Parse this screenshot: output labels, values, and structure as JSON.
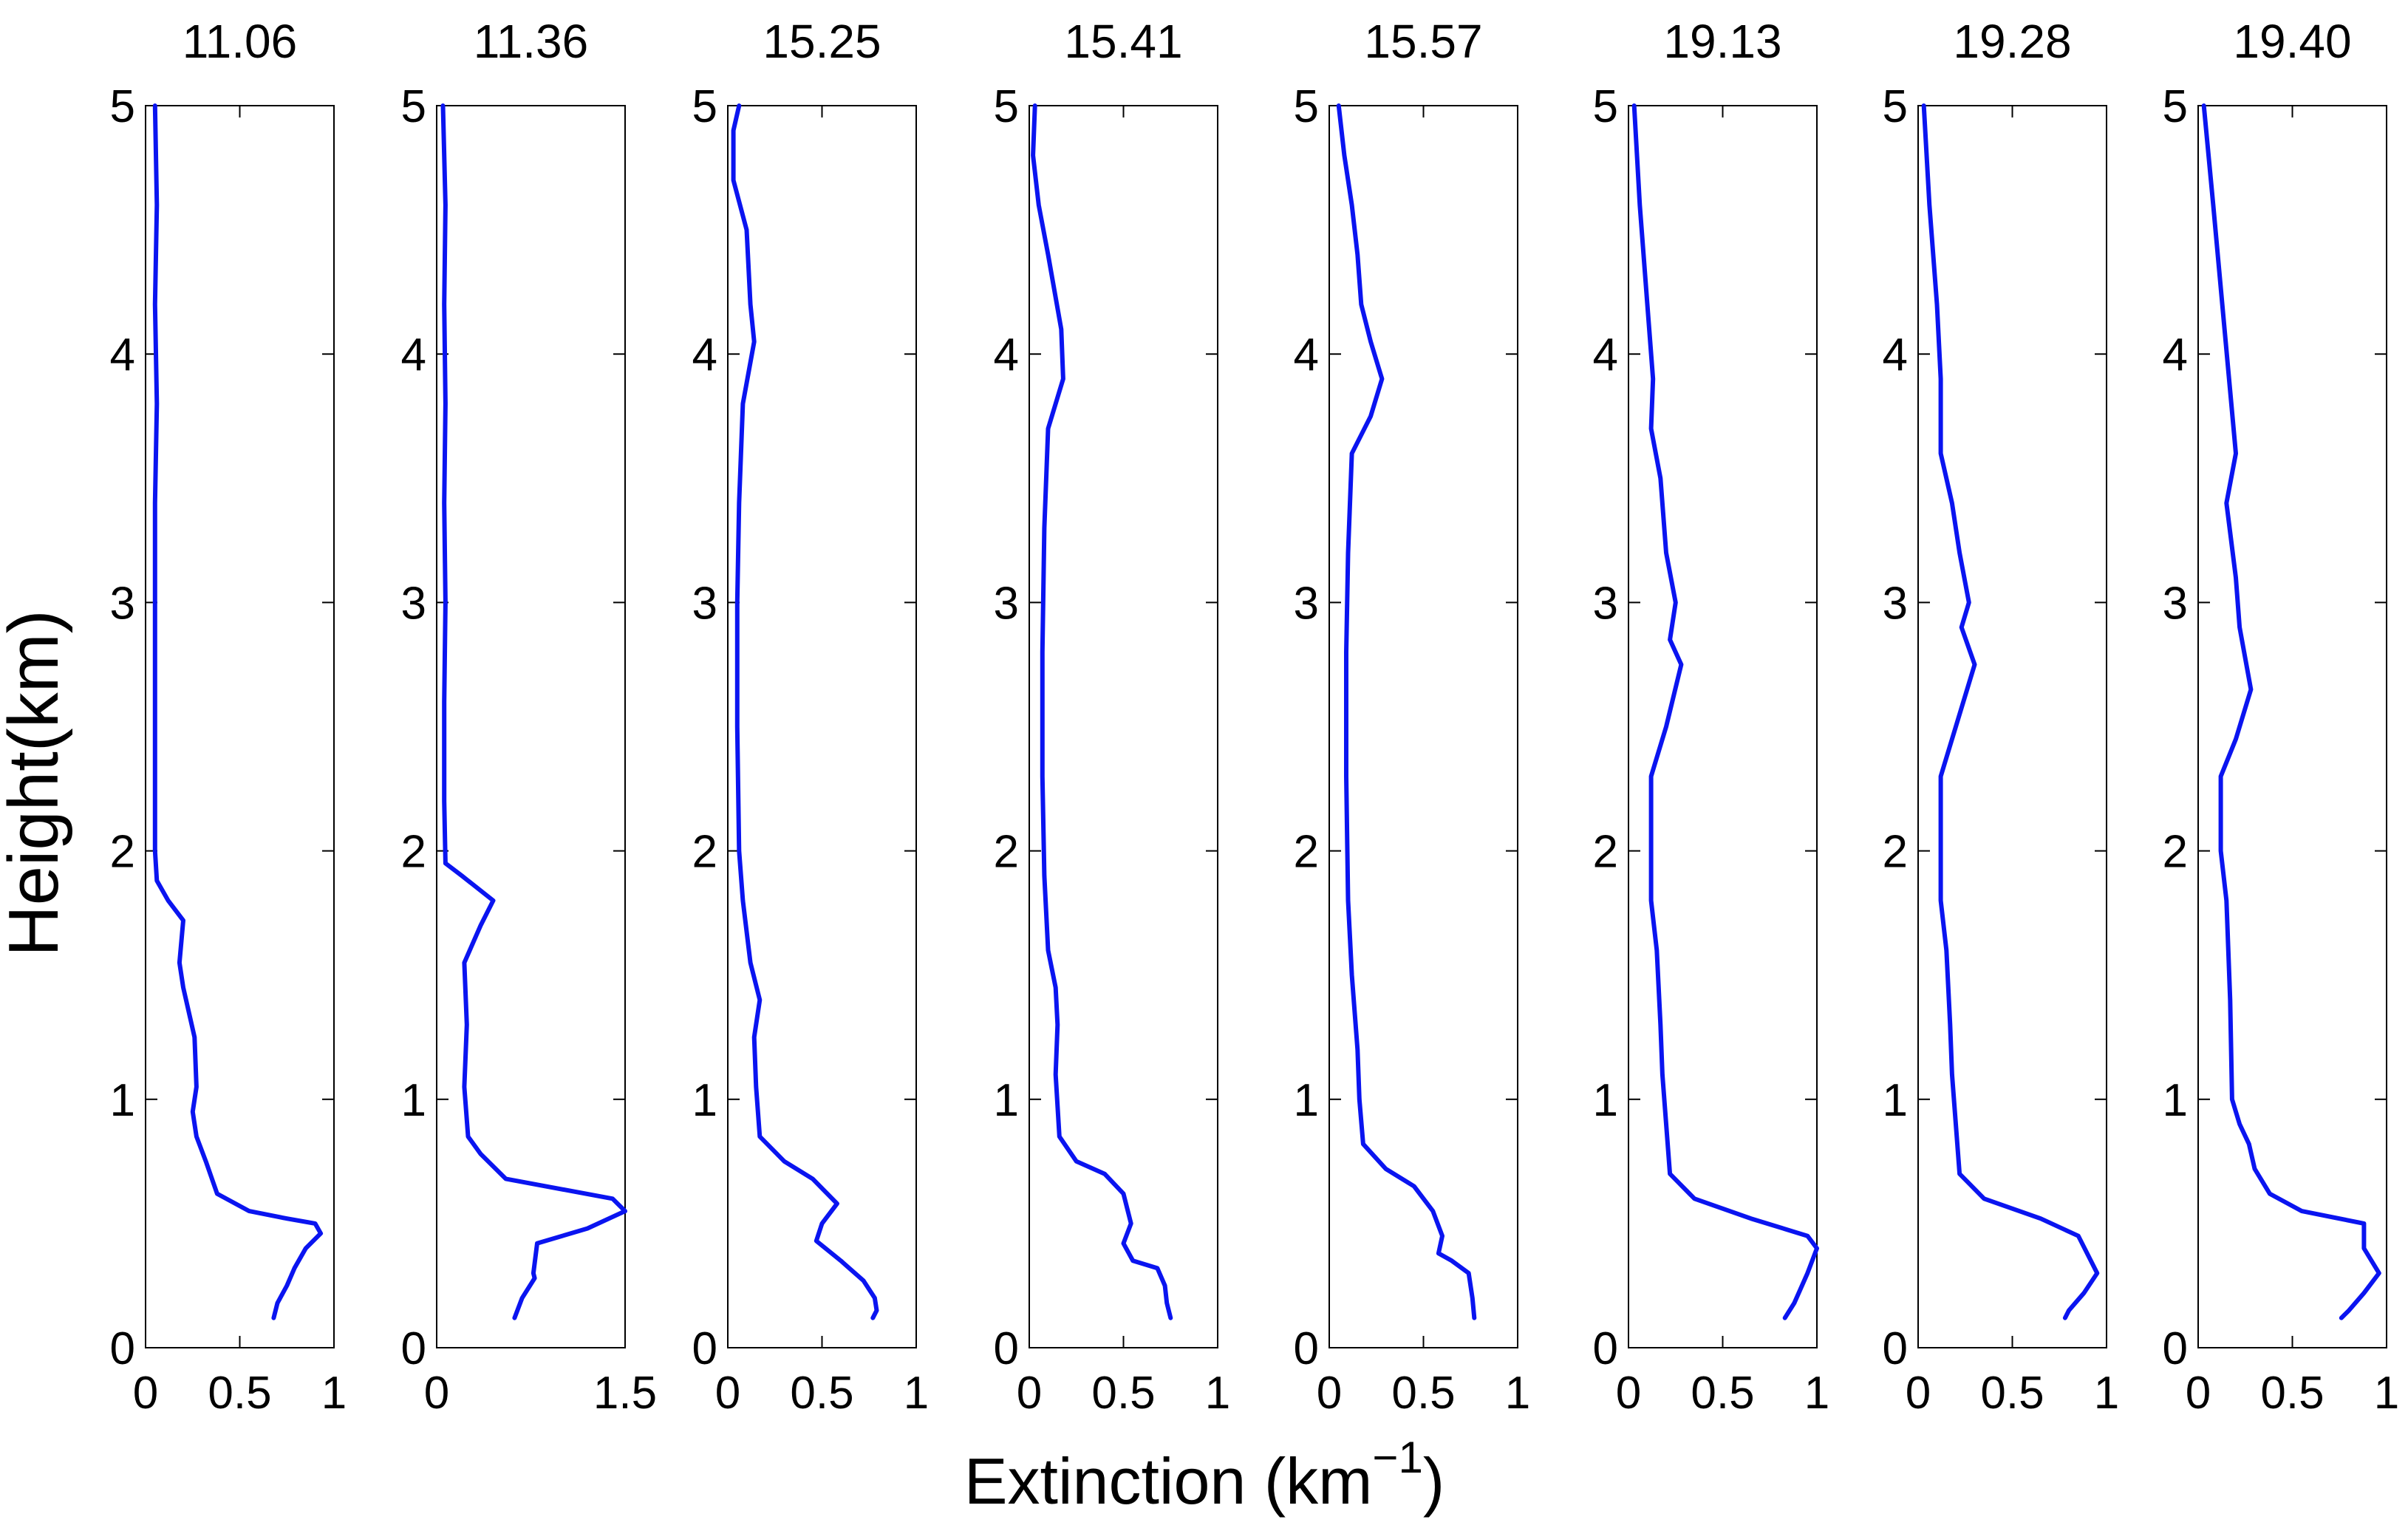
{
  "figure": {
    "ylabel": "Height(km)",
    "xlabel_main": "Extinction (km",
    "xlabel_sup": "−1",
    "xlabel_close": ")",
    "line_color": "#0a14f0"
  },
  "chart_data": [
    {
      "type": "line",
      "title": "11.06",
      "xlim": [
        0,
        1
      ],
      "xticks": [
        0,
        0.5,
        1
      ],
      "xtick_labels": [
        "0",
        "0.5",
        "1"
      ],
      "ylim": [
        0,
        5
      ],
      "yticks": [
        0,
        1,
        2,
        3,
        4,
        5
      ],
      "ytick_labels": [
        "0",
        "1",
        "2",
        "3",
        "4",
        "5"
      ],
      "grid": false,
      "series": [
        {
          "color": "#0a14f0",
          "x": [
            0.05,
            0.06,
            0.05,
            0.06,
            0.05,
            0.05,
            0.05,
            0.05,
            0.05,
            0.06,
            0.12,
            0.2,
            0.18,
            0.2,
            0.26,
            0.27,
            0.25,
            0.27,
            0.32,
            0.38,
            0.55,
            0.75,
            0.9,
            0.93,
            0.85,
            0.79,
            0.75,
            0.7,
            0.68
          ],
          "y": [
            5.0,
            4.6,
            4.2,
            3.8,
            3.4,
            3.0,
            2.6,
            2.2,
            2.0,
            1.88,
            1.8,
            1.72,
            1.55,
            1.45,
            1.25,
            1.05,
            0.95,
            0.85,
            0.75,
            0.62,
            0.55,
            0.52,
            0.5,
            0.46,
            0.4,
            0.32,
            0.25,
            0.18,
            0.12
          ]
        }
      ]
    },
    {
      "type": "line",
      "title": "11.36",
      "xlim": [
        0,
        1.5
      ],
      "xticks": [
        0,
        1.5
      ],
      "xtick_labels": [
        "0",
        "1.5"
      ],
      "ylim": [
        0,
        5
      ],
      "yticks": [
        0,
        1,
        2,
        3,
        4,
        5
      ],
      "ytick_labels": [
        "0",
        "1",
        "2",
        "3",
        "4",
        "5"
      ],
      "grid": false,
      "series": [
        {
          "color": "#0a14f0",
          "x": [
            0.05,
            0.07,
            0.06,
            0.07,
            0.06,
            0.07,
            0.06,
            0.06,
            0.07,
            0.2,
            0.45,
            0.35,
            0.22,
            0.24,
            0.22,
            0.25,
            0.35,
            0.55,
            1.4,
            1.5,
            1.2,
            0.8,
            0.77,
            0.78,
            0.68,
            0.62
          ],
          "y": [
            5.0,
            4.6,
            4.2,
            3.8,
            3.4,
            3.0,
            2.6,
            2.2,
            1.95,
            1.9,
            1.8,
            1.7,
            1.55,
            1.3,
            1.05,
            0.85,
            0.78,
            0.68,
            0.6,
            0.55,
            0.48,
            0.42,
            0.3,
            0.28,
            0.2,
            0.12
          ]
        }
      ]
    },
    {
      "type": "line",
      "title": "15.25",
      "xlim": [
        0,
        1
      ],
      "xticks": [
        0,
        0.5,
        1
      ],
      "xtick_labels": [
        "0",
        "0.5",
        "1"
      ],
      "ylim": [
        0,
        5
      ],
      "yticks": [
        0,
        1,
        2,
        3,
        4,
        5
      ],
      "ytick_labels": [
        "0",
        "1",
        "2",
        "3",
        "4",
        "5"
      ],
      "grid": false,
      "series": [
        {
          "color": "#0a14f0",
          "x": [
            0.06,
            0.03,
            0.03,
            0.1,
            0.12,
            0.14,
            0.08,
            0.06,
            0.05,
            0.05,
            0.06,
            0.08,
            0.12,
            0.17,
            0.14,
            0.15,
            0.17,
            0.3,
            0.45,
            0.58,
            0.5,
            0.47,
            0.6,
            0.72,
            0.78,
            0.79,
            0.77
          ],
          "y": [
            5.0,
            4.9,
            4.7,
            4.5,
            4.2,
            4.05,
            3.8,
            3.4,
            3.0,
            2.5,
            2.0,
            1.8,
            1.55,
            1.4,
            1.25,
            1.05,
            0.85,
            0.75,
            0.68,
            0.58,
            0.5,
            0.43,
            0.35,
            0.27,
            0.2,
            0.15,
            0.12
          ]
        }
      ]
    },
    {
      "type": "line",
      "title": "15.41",
      "xlim": [
        0,
        1
      ],
      "xticks": [
        0,
        0.5,
        1
      ],
      "xtick_labels": [
        "0",
        "0.5",
        "1"
      ],
      "ylim": [
        0,
        5
      ],
      "yticks": [
        0,
        1,
        2,
        3,
        4,
        5
      ],
      "ytick_labels": [
        "0",
        "1",
        "2",
        "3",
        "4",
        "5"
      ],
      "grid": false,
      "series": [
        {
          "color": "#0a14f0",
          "x": [
            0.03,
            0.02,
            0.05,
            0.1,
            0.17,
            0.18,
            0.1,
            0.08,
            0.07,
            0.07,
            0.08,
            0.1,
            0.14,
            0.15,
            0.14,
            0.16,
            0.25,
            0.4,
            0.5,
            0.54,
            0.5,
            0.55,
            0.68,
            0.72,
            0.73,
            0.75
          ],
          "y": [
            5.0,
            4.8,
            4.6,
            4.4,
            4.1,
            3.9,
            3.7,
            3.3,
            2.8,
            2.3,
            1.9,
            1.6,
            1.45,
            1.3,
            1.1,
            0.85,
            0.75,
            0.7,
            0.62,
            0.5,
            0.42,
            0.35,
            0.32,
            0.25,
            0.18,
            0.12
          ]
        }
      ]
    },
    {
      "type": "line",
      "title": "15.57",
      "xlim": [
        0,
        1
      ],
      "xticks": [
        0,
        0.5,
        1
      ],
      "xtick_labels": [
        "0",
        "0.5",
        "1"
      ],
      "ylim": [
        0,
        5
      ],
      "yticks": [
        0,
        1,
        2,
        3,
        4,
        5
      ],
      "ytick_labels": [
        "0",
        "1",
        "2",
        "3",
        "4",
        "5"
      ],
      "grid": false,
      "series": [
        {
          "color": "#0a14f0",
          "x": [
            0.05,
            0.08,
            0.12,
            0.15,
            0.17,
            0.22,
            0.28,
            0.22,
            0.12,
            0.1,
            0.09,
            0.09,
            0.1,
            0.12,
            0.15,
            0.16,
            0.18,
            0.3,
            0.45,
            0.55,
            0.6,
            0.58,
            0.65,
            0.74,
            0.76,
            0.77
          ],
          "y": [
            5.0,
            4.8,
            4.6,
            4.4,
            4.2,
            4.05,
            3.9,
            3.75,
            3.6,
            3.2,
            2.8,
            2.3,
            1.8,
            1.5,
            1.2,
            1.0,
            0.82,
            0.72,
            0.65,
            0.55,
            0.45,
            0.38,
            0.35,
            0.3,
            0.2,
            0.12
          ]
        }
      ]
    },
    {
      "type": "line",
      "title": "19.13",
      "xlim": [
        0,
        1
      ],
      "xticks": [
        0,
        0.5,
        1
      ],
      "xtick_labels": [
        "0",
        "0.5",
        "1"
      ],
      "ylim": [
        0,
        5
      ],
      "yticks": [
        0,
        1,
        2,
        3,
        4,
        5
      ],
      "ytick_labels": [
        "0",
        "1",
        "2",
        "3",
        "4",
        "5"
      ],
      "grid": false,
      "series": [
        {
          "color": "#0a14f0",
          "x": [
            0.03,
            0.06,
            0.1,
            0.13,
            0.12,
            0.17,
            0.2,
            0.25,
            0.22,
            0.28,
            0.2,
            0.12,
            0.12,
            0.15,
            0.17,
            0.18,
            0.2,
            0.22,
            0.35,
            0.65,
            0.95,
            1.0,
            0.95,
            0.88,
            0.83
          ],
          "y": [
            5.0,
            4.6,
            4.2,
            3.9,
            3.7,
            3.5,
            3.2,
            3.0,
            2.85,
            2.75,
            2.5,
            2.3,
            1.8,
            1.6,
            1.3,
            1.1,
            0.9,
            0.7,
            0.6,
            0.52,
            0.45,
            0.4,
            0.3,
            0.18,
            0.12
          ]
        }
      ]
    },
    {
      "type": "line",
      "title": "19.28",
      "xlim": [
        0,
        1
      ],
      "xticks": [
        0,
        0.5,
        1
      ],
      "xtick_labels": [
        "0",
        "0.5",
        "1"
      ],
      "ylim": [
        0,
        5
      ],
      "yticks": [
        0,
        1,
        2,
        3,
        4,
        5
      ],
      "ytick_labels": [
        "0",
        "1",
        "2",
        "3",
        "4",
        "5"
      ],
      "grid": false,
      "series": [
        {
          "color": "#0a14f0",
          "x": [
            0.03,
            0.06,
            0.1,
            0.12,
            0.12,
            0.18,
            0.22,
            0.27,
            0.23,
            0.3,
            0.2,
            0.12,
            0.12,
            0.15,
            0.17,
            0.18,
            0.2,
            0.22,
            0.35,
            0.65,
            0.85,
            0.95,
            0.88,
            0.8,
            0.78
          ],
          "y": [
            5.0,
            4.6,
            4.2,
            3.9,
            3.6,
            3.4,
            3.2,
            3.0,
            2.9,
            2.75,
            2.5,
            2.3,
            1.8,
            1.6,
            1.3,
            1.1,
            0.9,
            0.7,
            0.6,
            0.52,
            0.45,
            0.3,
            0.22,
            0.15,
            0.12
          ]
        }
      ]
    },
    {
      "type": "line",
      "title": "19.40",
      "xlim": [
        0,
        1
      ],
      "xticks": [
        0,
        0.5,
        1
      ],
      "xtick_labels": [
        "0",
        "0.5",
        "1"
      ],
      "ylim": [
        0,
        5
      ],
      "yticks": [
        0,
        1,
        2,
        3,
        4,
        5
      ],
      "ytick_labels": [
        "0",
        "1",
        "2",
        "3",
        "4",
        "5"
      ],
      "grid": false,
      "series": [
        {
          "color": "#0a14f0",
          "x": [
            0.03,
            0.08,
            0.14,
            0.2,
            0.15,
            0.2,
            0.22,
            0.28,
            0.2,
            0.12,
            0.12,
            0.15,
            0.17,
            0.18,
            0.22,
            0.27,
            0.3,
            0.38,
            0.55,
            0.88,
            0.88,
            0.96,
            0.88,
            0.8,
            0.76
          ],
          "y": [
            5.0,
            4.6,
            4.1,
            3.6,
            3.4,
            3.1,
            2.9,
            2.65,
            2.45,
            2.3,
            2.0,
            1.8,
            1.4,
            1.0,
            0.9,
            0.82,
            0.72,
            0.62,
            0.55,
            0.5,
            0.4,
            0.3,
            0.22,
            0.15,
            0.12
          ]
        }
      ]
    }
  ]
}
